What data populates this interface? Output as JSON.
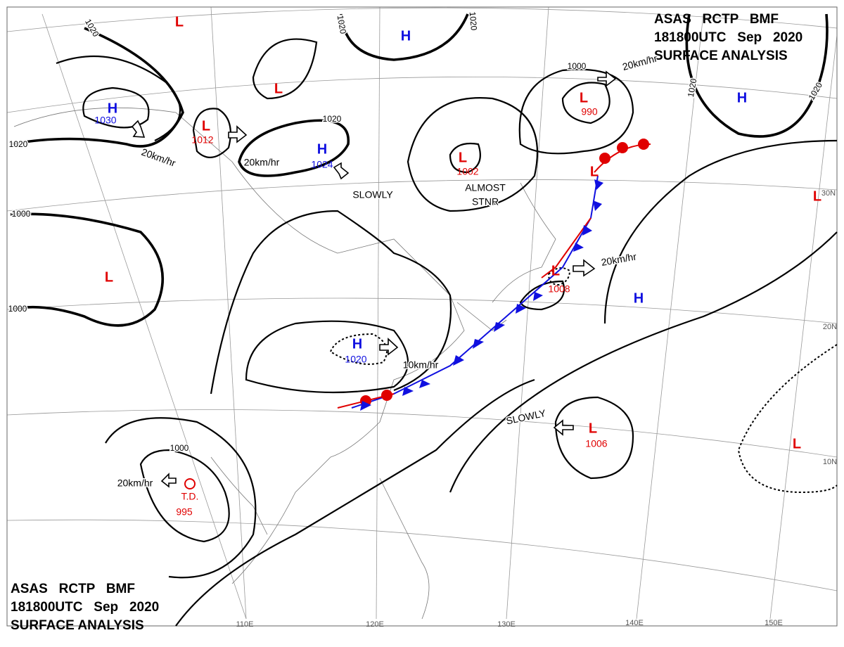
{
  "header": {
    "agency": "ASAS   RCTP   BMF",
    "time": "181800UTC   Sep   2020",
    "product": "SURFACE ANALYSIS"
  },
  "pressure_centers": [
    {
      "symbol": "L"
    },
    {
      "symbol": "H"
    },
    {
      "symbol": "L"
    },
    {
      "symbol": "H",
      "pressure": 1030
    },
    {
      "symbol": "L",
      "pressure": 1012
    },
    {
      "symbol": "H",
      "pressure": 1024
    },
    {
      "symbol": "L",
      "pressure": 990
    },
    {
      "symbol": "L",
      "pressure": 1002
    },
    {
      "symbol": "H"
    },
    {
      "symbol": "L"
    },
    {
      "symbol": "L"
    },
    {
      "symbol": "L"
    },
    {
      "symbol": "L",
      "pressure": 1008
    },
    {
      "symbol": "H"
    },
    {
      "symbol": "H",
      "pressure": 1020
    },
    {
      "symbol": "L",
      "pressure": 1006
    },
    {
      "symbol": "L"
    }
  ],
  "tropical_depression": {
    "label": "T.D.",
    "pressure": 995
  },
  "isobar_labels": [
    1020,
    1020,
    1020,
    1020,
    1020,
    1020,
    1020,
    1000,
    1000,
    1000,
    1000
  ],
  "motion_labels": [
    "20km/hr",
    "20km/hr",
    "20km/hr",
    "20km/hr",
    "20km/hr",
    "SLOWLY",
    "SLOWLY",
    "ALMOST",
    "STNR",
    "10km/hr"
  ],
  "latitude_labels": [
    "30N",
    "20N",
    "10N"
  ],
  "longitude_labels": [
    "110E",
    "120E",
    "130E",
    "140E",
    "150E"
  ]
}
